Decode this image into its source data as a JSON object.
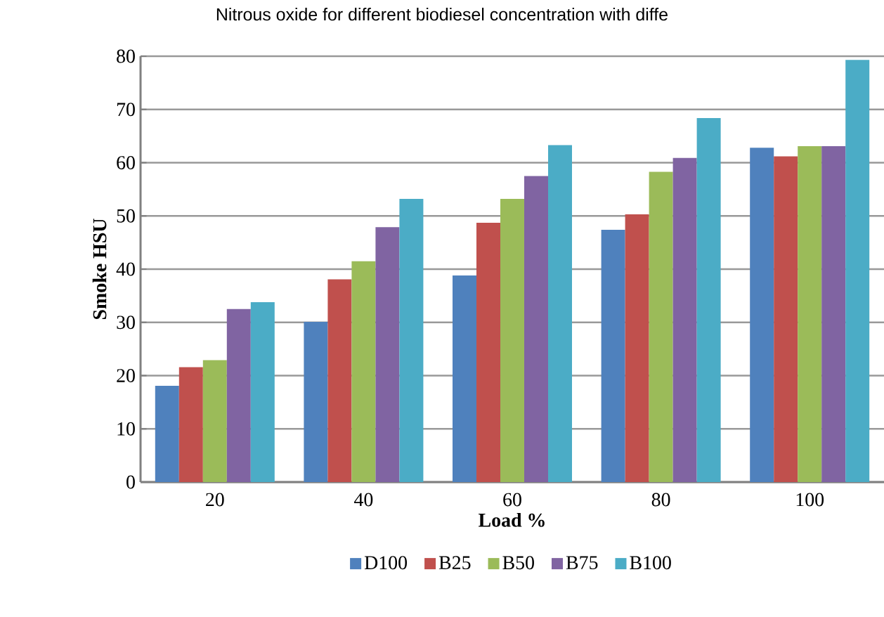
{
  "chart_data": {
    "type": "bar",
    "title": "Nitrous oxide for different biodiesel concentration with diffe",
    "xlabel": "Load %",
    "ylabel": "Smoke HSU",
    "categories": [
      "20",
      "40",
      "60",
      "80",
      "100"
    ],
    "series": [
      {
        "name": "D100",
        "color": "#4f81bd",
        "values": [
          18.1,
          30.1,
          38.8,
          47.4,
          62.8
        ]
      },
      {
        "name": "B25",
        "color": "#c0504d",
        "values": [
          21.6,
          38.1,
          48.7,
          50.3,
          61.2
        ]
      },
      {
        "name": "B50",
        "color": "#9bbb59",
        "values": [
          22.9,
          41.5,
          53.2,
          58.3,
          63.1
        ]
      },
      {
        "name": "B75",
        "color": "#8064a2",
        "values": [
          32.5,
          47.9,
          57.5,
          60.9,
          63.1
        ]
      },
      {
        "name": "B100",
        "color": "#4bacc6",
        "values": [
          33.8,
          53.2,
          63.3,
          68.4,
          79.3
        ]
      }
    ],
    "ylim": [
      0,
      80
    ],
    "yticks": [
      0,
      10,
      20,
      30,
      40,
      50,
      60,
      70,
      80
    ],
    "grid": "y",
    "legend": "bottom"
  }
}
